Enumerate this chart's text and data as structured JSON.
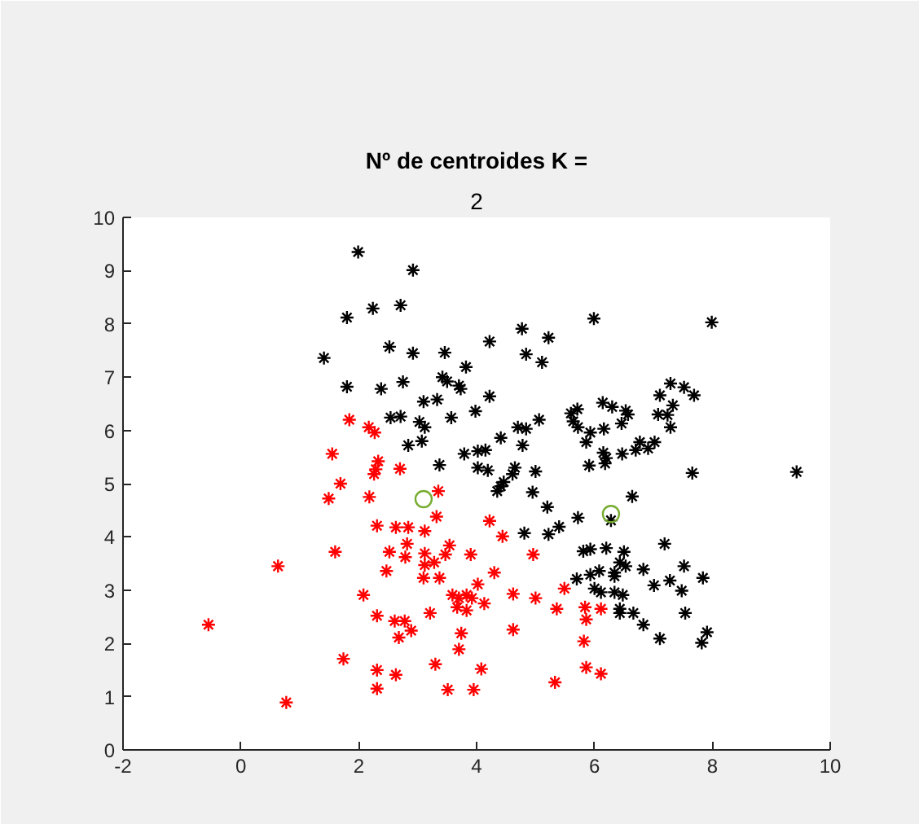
{
  "chart_data": {
    "type": "scatter",
    "title": "Nº de centroides K =",
    "subtitle": "2",
    "xlim": [
      -2,
      10
    ],
    "ylim": [
      0,
      10
    ],
    "xticks": [
      -2,
      0,
      2,
      4,
      6,
      8,
      10
    ],
    "yticks": [
      0,
      1,
      2,
      3,
      4,
      5,
      6,
      7,
      8,
      9,
      10
    ],
    "series": [
      {
        "color": "#ff0000",
        "marker": "cross",
        "x": [
          2.18,
          3.35,
          3.32,
          4.22,
          4.44,
          4.96,
          2.31,
          2.63,
          2.84,
          3.12,
          2.82,
          3.54,
          2.52,
          2.79,
          3.12,
          3.47,
          3.9,
          3.28,
          3.12,
          2.47,
          4.3,
          3.1,
          3.37,
          4.02,
          2.08,
          3.59,
          3.7,
          3.83,
          3.92,
          4.62,
          5.0,
          5.49,
          4.13,
          3.67,
          3.83,
          5.36,
          5.84,
          6.11,
          3.21,
          2.31,
          2.61,
          2.78,
          2.89,
          2.68,
          5.86,
          3.74,
          4.62,
          5.82,
          3.7,
          1.74,
          3.3,
          4.08,
          2.31,
          2.63,
          5.86,
          6.11,
          5.33,
          2.31,
          3.51,
          3.95,
          1.69,
          1.49,
          1.6,
          0.63,
          -0.55,
          0.77,
          1.84,
          1.55,
          2.17,
          2.27,
          2.33,
          2.29,
          2.26,
          2.7
        ],
        "values": [
          4.75,
          4.86,
          4.38,
          4.3,
          4.01,
          3.67,
          4.21,
          4.18,
          4.18,
          4.11,
          3.87,
          3.84,
          3.72,
          3.62,
          3.69,
          3.67,
          3.67,
          3.52,
          3.47,
          3.36,
          3.33,
          3.23,
          3.23,
          3.11,
          2.91,
          2.91,
          2.85,
          2.91,
          2.85,
          2.93,
          2.85,
          3.03,
          2.75,
          2.68,
          2.62,
          2.65,
          2.68,
          2.65,
          2.57,
          2.52,
          2.42,
          2.42,
          2.24,
          2.11,
          2.45,
          2.19,
          2.26,
          2.04,
          1.89,
          1.71,
          1.61,
          1.52,
          1.5,
          1.41,
          1.55,
          1.43,
          1.27,
          1.15,
          1.13,
          1.13,
          5.0,
          4.72,
          3.72,
          3.45,
          2.35,
          0.89,
          6.2,
          5.56,
          6.06,
          5.96,
          5.42,
          5.27,
          5.18,
          5.28
        ]
      },
      {
        "color": "#000000",
        "marker": "cross",
        "x": [
          1.99,
          2.92,
          1.8,
          2.24,
          2.71,
          5.99,
          4.77,
          5.22,
          4.22,
          2.52,
          2.92,
          3.46,
          4.84,
          5.11,
          3.82,
          1.8,
          2.38,
          2.75,
          3.42,
          3.5,
          3.7,
          3.73,
          4.22,
          3.1,
          3.33,
          3.98,
          2.54,
          2.71,
          3.57,
          3.03,
          3.12,
          3.07,
          2.84,
          4.41,
          4.7,
          4.84,
          5.06,
          4.78,
          3.37,
          3.79,
          4.02,
          4.15,
          4.02,
          4.19,
          4.65,
          4.61,
          5.0,
          4.46,
          4.41,
          4.35,
          4.95,
          5.6,
          5.71,
          5.64,
          5.72,
          5.93,
          6.14,
          5.86,
          6.15,
          5.91,
          7.99,
          7.29,
          7.52,
          7.11,
          7.69,
          7.33,
          6.3,
          6.53,
          6.57,
          7.08,
          7.24,
          6.46,
          7.29,
          6.16,
          7.02,
          6.77,
          6.91,
          6.7,
          6.47,
          6.2,
          6.18,
          7.66,
          9.43,
          6.64,
          6.28,
          5.93,
          6.2,
          6.5,
          7.19,
          6.43,
          6.53,
          6.83,
          7.52,
          6.08,
          6.34,
          6.34,
          5.93,
          7.84,
          7.28,
          7.01,
          7.48,
          6.0,
          6.11,
          6.34,
          6.48,
          6.43,
          6.43,
          6.66,
          7.54,
          6.83,
          7.11,
          7.91,
          7.82,
          5.2,
          5.72,
          5.4,
          5.22,
          4.81,
          5.81,
          5.7,
          1.41
        ],
        "values": [
          9.35,
          9.01,
          8.12,
          8.29,
          8.35,
          8.1,
          7.91,
          7.74,
          7.67,
          7.57,
          7.45,
          7.46,
          7.43,
          7.28,
          7.19,
          6.82,
          6.78,
          6.91,
          7.0,
          6.92,
          6.84,
          6.78,
          6.64,
          6.54,
          6.58,
          6.36,
          6.24,
          6.26,
          6.24,
          6.16,
          6.06,
          5.8,
          5.72,
          5.86,
          6.06,
          6.03,
          6.2,
          5.72,
          5.35,
          5.56,
          5.61,
          5.63,
          5.3,
          5.25,
          5.3,
          5.18,
          5.23,
          5.03,
          4.95,
          4.86,
          4.84,
          6.32,
          6.4,
          6.17,
          6.06,
          5.96,
          6.52,
          5.78,
          5.58,
          5.34,
          8.03,
          6.88,
          6.81,
          6.66,
          6.66,
          6.47,
          6.44,
          6.37,
          6.3,
          6.3,
          6.29,
          6.13,
          6.06,
          6.03,
          5.78,
          5.78,
          5.66,
          5.63,
          5.56,
          5.48,
          5.38,
          5.2,
          5.22,
          4.76,
          4.31,
          3.77,
          3.79,
          3.72,
          3.87,
          3.52,
          3.45,
          3.39,
          3.45,
          3.36,
          3.33,
          3.26,
          3.29,
          3.23,
          3.18,
          3.09,
          2.99,
          3.03,
          2.96,
          2.96,
          2.91,
          2.65,
          2.57,
          2.57,
          2.57,
          2.35,
          2.09,
          2.21,
          2.01,
          4.56,
          4.36,
          4.19,
          4.05,
          4.07,
          3.73,
          3.21,
          7.36
        ]
      },
      {
        "color": "#77ac30",
        "marker": "circle",
        "x": [
          3.1,
          6.28
        ],
        "values": [
          4.71,
          4.43
        ]
      }
    ]
  }
}
